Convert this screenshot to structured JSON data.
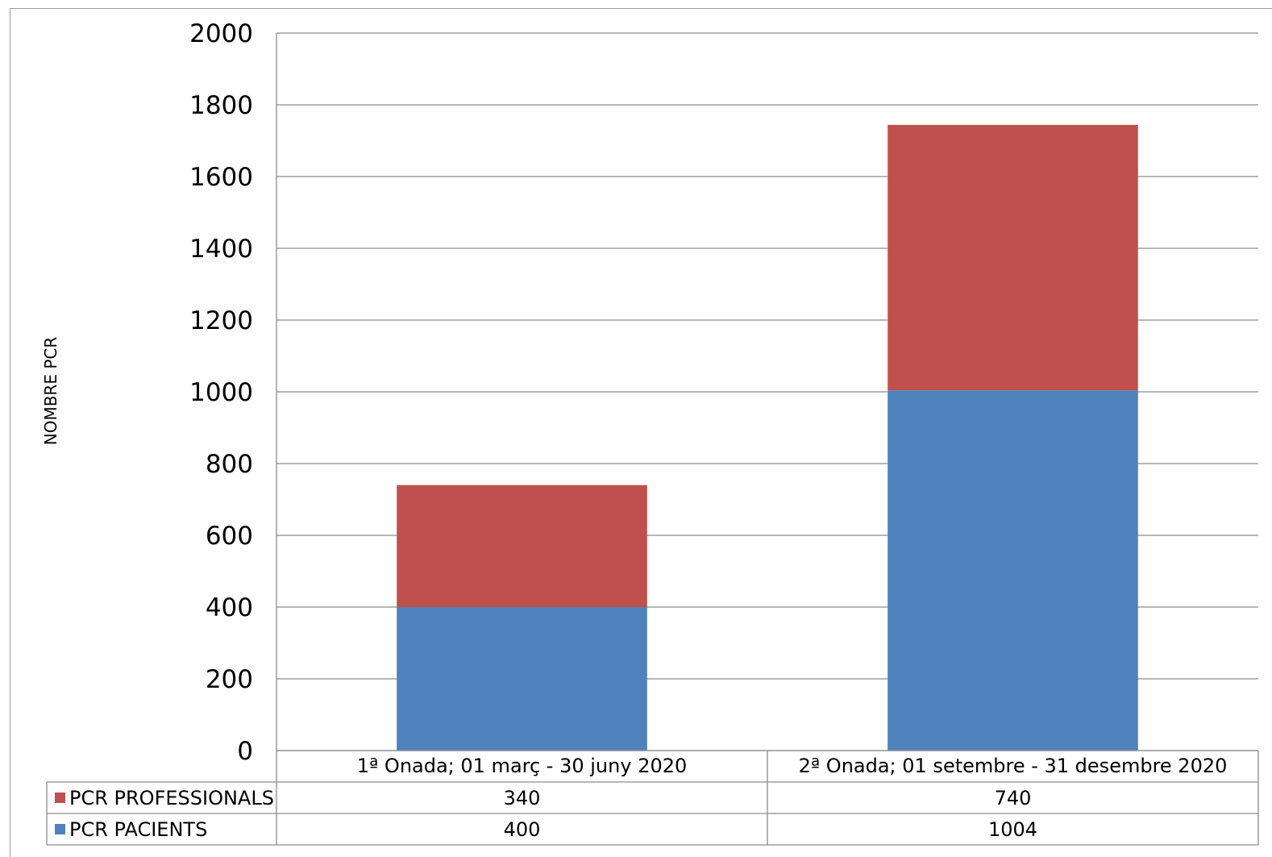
{
  "chart_data": {
    "type": "bar",
    "stacked": true,
    "title": "",
    "xlabel": "",
    "ylabel": "NOMBRE PCR",
    "ylim": [
      0,
      2000
    ],
    "yticks": [
      0,
      200,
      400,
      600,
      800,
      1000,
      1200,
      1400,
      1600,
      1800,
      2000
    ],
    "grid": true,
    "legend": "data-table-left",
    "categories": [
      "1ª Onada; 01 març - 30 juny 2020",
      "2ª Onada; 01 setembre - 31 desembre 2020"
    ],
    "series": [
      {
        "name": "PCR PACIENTS",
        "color": "#4f81bd",
        "values": [
          400,
          1004
        ]
      },
      {
        "name": "PCR PROFESSIONALS",
        "color": "#c0504d",
        "values": [
          340,
          740
        ]
      }
    ],
    "table_rows": [
      "PCR PROFESSIONALS",
      "PCR PACIENTS"
    ]
  }
}
